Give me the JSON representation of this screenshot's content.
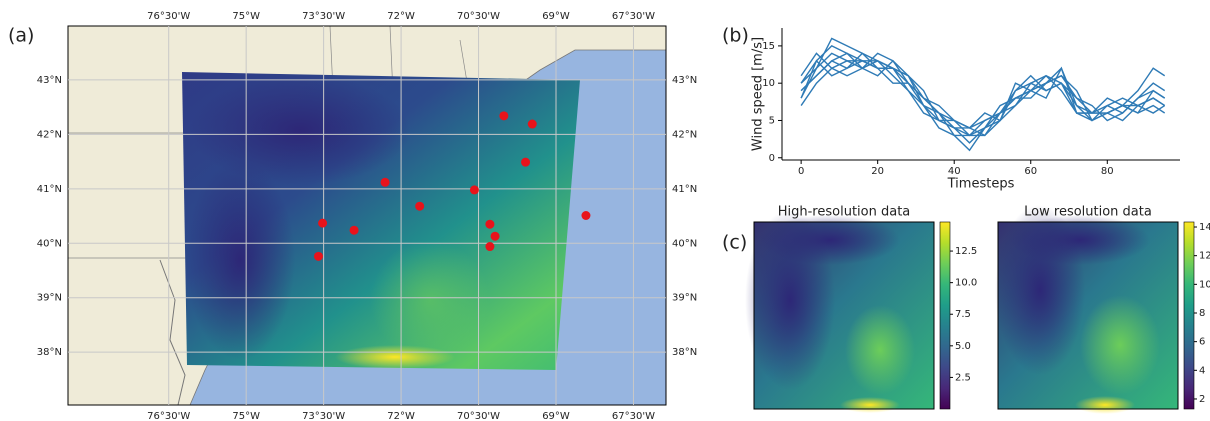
{
  "chart_data": [
    {
      "type": "map",
      "panel_label": "(a)",
      "xlim": [
        -78.45,
        -66.87
      ],
      "ylim": [
        37.03,
        43.99
      ],
      "grid": true,
      "xticks": [
        {
          "value": -76.5,
          "label": "76°30'W"
        },
        {
          "value": -75,
          "label": "75°W"
        },
        {
          "value": -73.5,
          "label": "73°30'W"
        },
        {
          "value": -72,
          "label": "72°W"
        },
        {
          "value": -70.5,
          "label": "70°30'W"
        },
        {
          "value": -69,
          "label": "69°W"
        },
        {
          "value": -67.5,
          "label": "67°30'W"
        }
      ],
      "yticks": [
        {
          "value": 38,
          "label": "38°N"
        },
        {
          "value": 39,
          "label": "39°N"
        },
        {
          "value": 40,
          "label": "40°N"
        },
        {
          "value": 41,
          "label": "41°N"
        },
        {
          "value": 42,
          "label": "42°N"
        },
        {
          "value": 43,
          "label": "43°N"
        }
      ],
      "points": {
        "color": "#e8131b",
        "lon": [
          -70.01,
          -69.46,
          -69.59,
          -72.31,
          -70.58,
          -71.64,
          -73.52,
          -72.91,
          -70.28,
          -70.18,
          -70.28,
          -73.6,
          -68.42
        ],
        "lat": [
          42.34,
          42.19,
          41.49,
          41.12,
          40.98,
          40.68,
          40.37,
          40.24,
          40.35,
          40.13,
          39.94,
          39.76,
          40.51
        ]
      }
    },
    {
      "type": "line",
      "panel_label": "(b)",
      "y_label": "Wind speed [m/s]",
      "x_label": "Timesteps",
      "xlim": [
        -5,
        99
      ],
      "ylim": [
        -0.3,
        17.4
      ],
      "xticks": [
        0,
        20,
        40,
        60,
        80
      ],
      "yticks": [
        0,
        5,
        10,
        15
      ],
      "x": [
        0,
        4,
        8,
        12,
        16,
        20,
        24,
        28,
        32,
        36,
        40,
        44,
        48,
        52,
        56,
        60,
        64,
        68,
        72,
        76,
        80,
        84,
        88,
        92,
        95
      ],
      "series": [
        {
          "color": "#2f7bb6",
          "values": [
            8,
            12,
            14,
            13,
            13,
            12,
            12,
            10,
            7,
            5,
            4,
            3,
            4,
            6,
            8,
            9,
            10,
            11,
            8,
            6,
            6,
            7,
            7,
            8,
            7
          ]
        },
        {
          "color": "#2f7bb6",
          "values": [
            10,
            13,
            15,
            14,
            13,
            13,
            12,
            11,
            8,
            6,
            5,
            4,
            3,
            5,
            7,
            10,
            9,
            10,
            7,
            6,
            7,
            6,
            8,
            9,
            8
          ]
        },
        {
          "color": "#2f7bb6",
          "values": [
            9,
            11,
            13,
            12,
            14,
            13,
            11,
            9,
            7,
            4,
            3,
            3,
            5,
            6,
            9,
            10,
            11,
            9,
            6,
            5,
            6,
            7,
            6,
            7,
            6
          ]
        },
        {
          "color": "#2f7bb6",
          "values": [
            11,
            14,
            12,
            13,
            12,
            14,
            13,
            10,
            8,
            6,
            4,
            2,
            4,
            7,
            8,
            9,
            10,
            12,
            7,
            5,
            7,
            8,
            7,
            6,
            7
          ]
        },
        {
          "color": "#2f7bb6",
          "values": [
            7,
            10,
            12,
            11,
            12,
            11,
            13,
            11,
            9,
            5,
            4,
            4,
            6,
            5,
            9,
            11,
            9,
            10,
            8,
            7,
            5,
            6,
            8,
            10,
            9
          ]
        },
        {
          "color": "#2f7bb6",
          "values": [
            10,
            12,
            16,
            15,
            14,
            12,
            12,
            9,
            6,
            5,
            5,
            3,
            3,
            6,
            7,
            9,
            11,
            10,
            6,
            6,
            6,
            7,
            9,
            12,
            11
          ]
        },
        {
          "color": "#2f7bb6",
          "values": [
            8,
            13,
            11,
            12,
            13,
            12,
            10,
            10,
            8,
            7,
            5,
            4,
            5,
            6,
            8,
            8,
            10,
            11,
            9,
            5,
            6,
            5,
            7,
            8,
            7
          ]
        },
        {
          "color": "#2f7bb6",
          "values": [
            9,
            11,
            13,
            14,
            12,
            13,
            12,
            11,
            7,
            6,
            3,
            1,
            4,
            5,
            10,
            9,
            8,
            12,
            6,
            6,
            8,
            7,
            6,
            9,
            8
          ]
        }
      ]
    },
    {
      "type": "heatmap",
      "panel_label": "(c)",
      "title": "High-resolution data",
      "colormap": "viridis",
      "clim": [
        0,
        14.8
      ],
      "cticks": [
        {
          "value": 2.5,
          "label": "2.5"
        },
        {
          "value": 5,
          "label": "5.0"
        },
        {
          "value": 7.5,
          "label": "7.5"
        },
        {
          "value": 10,
          "label": "10.0"
        },
        12.5
      ]
    },
    {
      "type": "heatmap",
      "title": "Low resolution data",
      "colormap": "viridis",
      "clim": [
        1.3,
        14.35
      ],
      "cticks": [
        2,
        4,
        6,
        8,
        10,
        12,
        14
      ]
    }
  ]
}
